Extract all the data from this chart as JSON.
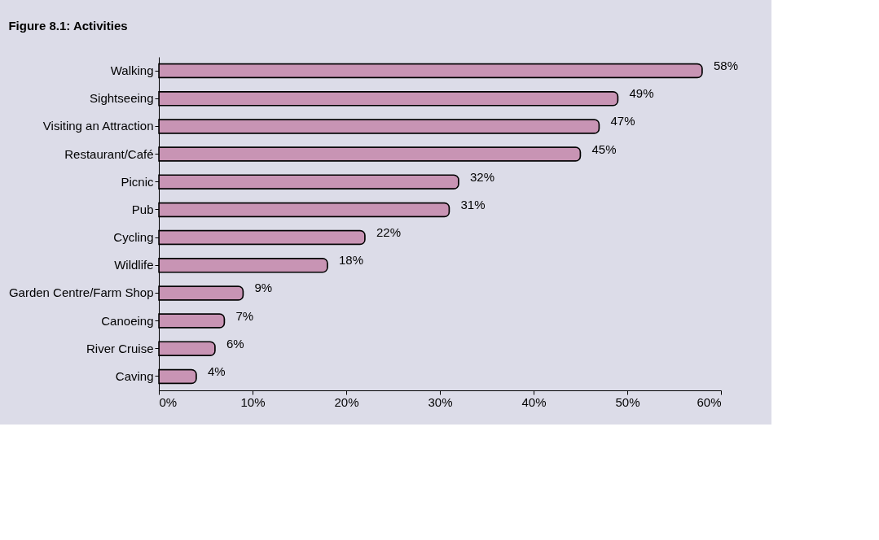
{
  "chart_data": {
    "type": "bar",
    "orientation": "horizontal",
    "title": "Figure 8.1: Activities",
    "categories": [
      "Walking",
      "Sightseeing",
      "Visiting an Attraction",
      "Restaurant/Café",
      "Picnic",
      "Pub",
      "Cycling",
      "Wildlife",
      "Garden Centre/Farm Shop",
      "Canoeing",
      "River Cruise",
      "Caving"
    ],
    "values": [
      58,
      49,
      47,
      45,
      32,
      31,
      22,
      18,
      9,
      7,
      6,
      4
    ],
    "value_labels": [
      "58%",
      "49%",
      "47%",
      "45%",
      "32%",
      "31%",
      "22%",
      "18%",
      "9%",
      "7%",
      "6%",
      "4%"
    ],
    "color": "#c894b4",
    "xlim": [
      0,
      60
    ],
    "xticks": [
      {
        "value": 0,
        "label": "0%"
      },
      {
        "value": 10,
        "label": "10%"
      },
      {
        "value": 20,
        "label": "20%"
      },
      {
        "value": 30,
        "label": "30%"
      },
      {
        "value": 40,
        "label": "40%"
      },
      {
        "value": 50,
        "label": "50%"
      },
      {
        "value": 60,
        "label": "60%"
      }
    ],
    "grid": false
  }
}
